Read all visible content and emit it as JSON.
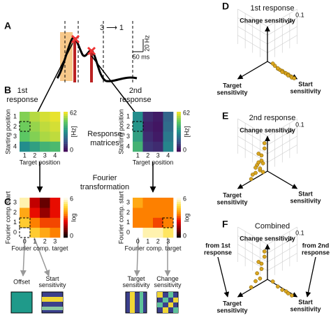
{
  "panel_a": {
    "label": "A",
    "condition": "3 ⟶ 1",
    "scale_y": "20 Hz",
    "scale_x": "50 ms"
  },
  "panel_b": {
    "label": "B",
    "center_label": [
      "Response",
      "matrices"
    ],
    "x_label": "Target position",
    "y_label": "Starting position",
    "ticks": [
      1,
      2,
      3,
      4
    ],
    "colorbar_unit": "[Hz]",
    "clim": [
      0,
      62
    ],
    "colormap": "viridis",
    "matrices": [
      {
        "title": [
          "1st",
          "response"
        ],
        "values": [
          [
            50,
            55,
            58,
            60
          ],
          [
            48,
            52,
            56,
            58
          ],
          [
            46,
            50,
            54,
            56
          ],
          [
            30,
            35,
            40,
            42
          ]
        ]
      },
      {
        "title": [
          "2nd",
          "response"
        ],
        "values": [
          [
            30,
            8,
            5,
            20
          ],
          [
            32,
            6,
            4,
            22
          ],
          [
            35,
            8,
            5,
            25
          ],
          [
            40,
            10,
            8,
            28
          ]
        ]
      }
    ]
  },
  "panel_c": {
    "label": "C",
    "center_label": [
      "Fourier",
      "transformation"
    ],
    "x_label": "Fourier comp. target",
    "y_label": "Fourier comp. start",
    "ticks": [
      0,
      1,
      2,
      3
    ],
    "colorbar_unit": "log",
    "clim": [
      0,
      6
    ],
    "colormap": "hot",
    "matrices": [
      {
        "values": [
          [
            6,
            4.5,
            4,
            3.5
          ],
          [
            4.5,
            3.5,
            3,
            3
          ],
          [
            4,
            2.5,
            1.5,
            2.5
          ],
          [
            5.5,
            2,
            1,
            2.5
          ]
        ]
      },
      {
        "values": [
          [
            6,
            5.5,
            5.5,
            5
          ],
          [
            3.5,
            3.5,
            3,
            3.5
          ],
          [
            3.5,
            3.5,
            3.5,
            3.5
          ],
          [
            4,
            3.5,
            3.5,
            3.5
          ]
        ]
      }
    ]
  },
  "basis": [
    [
      "Offset"
    ],
    [
      "Start",
      "sensitivity"
    ],
    [
      "Target",
      "sensitivity"
    ],
    [
      "Change",
      "sensitivity"
    ]
  ],
  "panels_3d": [
    {
      "label": "D",
      "title": "1st response",
      "change_label": "Change sensitivity",
      "target_label": [
        "Target",
        "sensitivity"
      ],
      "start_label": [
        "Start",
        "sensitivity"
      ],
      "scale": 0.1,
      "points": [
        [
          0.05,
          0.3,
          0.05
        ],
        [
          0.05,
          0.4,
          0.02
        ],
        [
          0.08,
          0.5,
          0.05
        ],
        [
          0.05,
          0.55,
          0.03
        ],
        [
          0.1,
          0.6,
          0.05
        ],
        [
          0.05,
          0.65,
          0.02
        ],
        [
          0.07,
          0.7,
          0.04
        ],
        [
          0.05,
          0.75,
          0.03
        ],
        [
          0.1,
          0.8,
          0.05
        ],
        [
          0.05,
          0.85,
          0.02
        ],
        [
          0.08,
          0.9,
          0.03
        ],
        [
          0.05,
          0.95,
          0.02
        ],
        [
          0.02,
          0.2,
          0.05
        ],
        [
          0.1,
          0.45,
          0.08
        ]
      ]
    },
    {
      "label": "E",
      "title": "2nd response",
      "change_label": "Change sensitivity",
      "target_label": [
        "Target",
        "sensitivity"
      ],
      "start_label": [
        "Start",
        "sensitivity"
      ],
      "scale": 0.1,
      "points": [
        [
          0.2,
          0.05,
          0.1
        ],
        [
          0.3,
          0.05,
          0.2
        ],
        [
          0.35,
          0.1,
          0.3
        ],
        [
          0.4,
          0.05,
          0.4
        ],
        [
          0.3,
          0.1,
          0.5
        ],
        [
          0.45,
          0.05,
          0.35
        ],
        [
          0.5,
          0.1,
          0.25
        ],
        [
          0.25,
          0.05,
          0.6
        ],
        [
          0.35,
          0.05,
          0.7
        ],
        [
          0.2,
          0.1,
          0.8
        ],
        [
          0.4,
          0.1,
          0.5
        ],
        [
          0.55,
          0.05,
          0.2
        ],
        [
          0.6,
          0.05,
          0.1
        ],
        [
          0.3,
          0.15,
          0.45
        ],
        [
          0.15,
          0.05,
          0.9
        ]
      ]
    },
    {
      "label": "F",
      "title": "Combined",
      "change_label": "Change sensitivity",
      "target_label": [
        "Target",
        "sensitivity"
      ],
      "start_label": [
        "Start",
        "sensitivity"
      ],
      "scale": 0.1,
      "annotations": [
        [
          "from 1st",
          "response"
        ],
        [
          "from 2nd",
          "response"
        ]
      ],
      "points": [
        [
          0.05,
          0.4,
          0.02
        ],
        [
          0.1,
          0.6,
          0.05
        ],
        [
          0.07,
          0.7,
          0.04
        ],
        [
          0.1,
          0.8,
          0.05
        ],
        [
          0.08,
          0.9,
          0.03
        ],
        [
          0.02,
          0.2,
          0.05
        ],
        [
          0.3,
          0.05,
          0.2
        ],
        [
          0.4,
          0.05,
          0.4
        ],
        [
          0.3,
          0.1,
          0.5
        ],
        [
          0.5,
          0.1,
          0.25
        ],
        [
          0.25,
          0.05,
          0.6
        ],
        [
          0.35,
          0.05,
          0.7
        ],
        [
          0.2,
          0.1,
          0.8
        ],
        [
          0.6,
          0.05,
          0.1
        ],
        [
          0.15,
          0.05,
          0.9
        ]
      ]
    }
  ]
}
